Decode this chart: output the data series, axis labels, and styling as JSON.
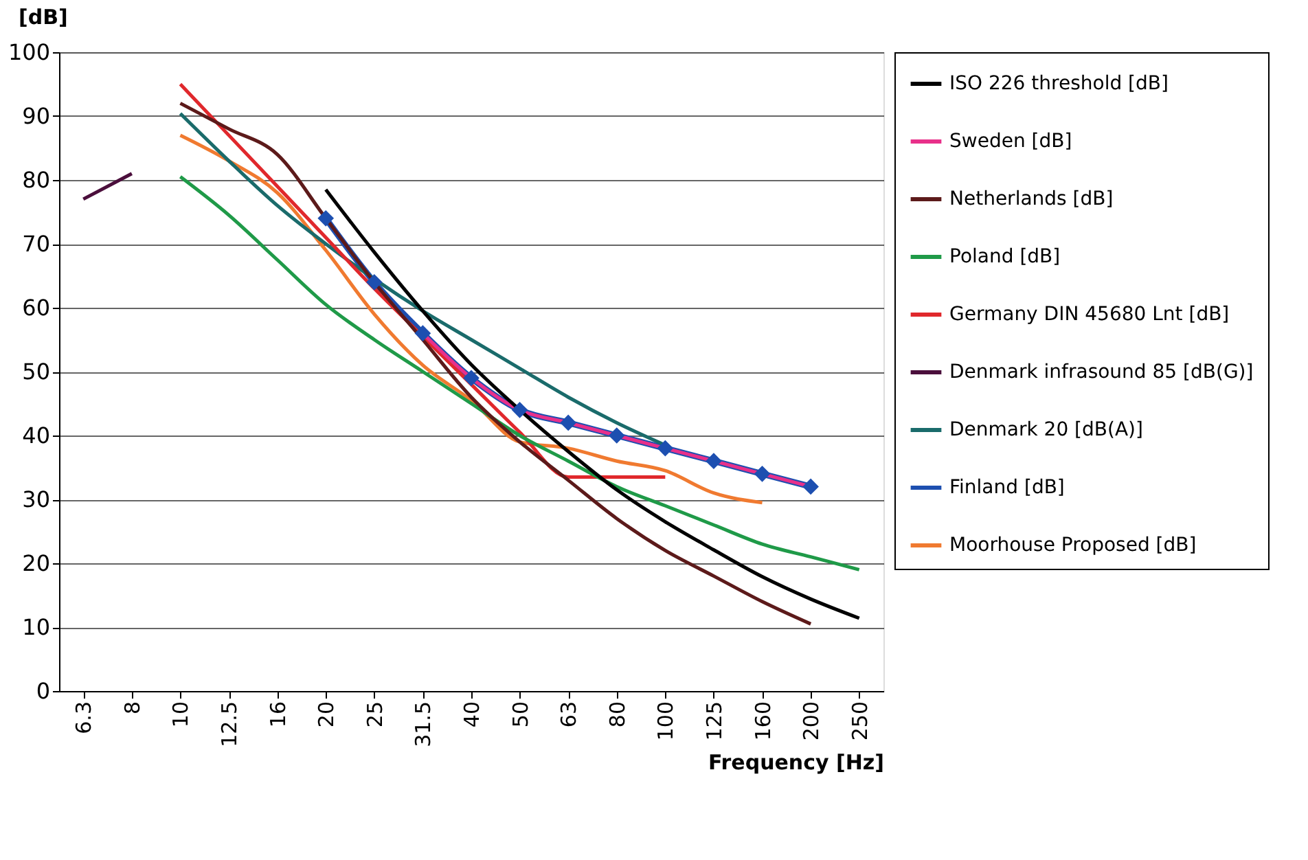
{
  "chart_data": {
    "type": "line",
    "categories": [
      "6.3",
      "8",
      "10",
      "12.5",
      "16",
      "20",
      "25",
      "31.5",
      "40",
      "50",
      "63",
      "80",
      "100",
      "125",
      "160",
      "200",
      "250"
    ],
    "xlabel": "Frequency [Hz]",
    "ylabel": "[dB]",
    "ylim": [
      0,
      100
    ],
    "yticks": [
      0,
      10,
      20,
      30,
      40,
      50,
      60,
      70,
      80,
      90,
      100
    ],
    "grid": "y",
    "legend": "right",
    "line_style": "solid",
    "series": [
      {
        "name": "ISO 226 threshold [dB]",
        "color": "#000000",
        "marker": "none",
        "values": [
          null,
          null,
          null,
          null,
          null,
          78.5,
          68.7,
          59.5,
          51.1,
          44,
          37.5,
          31.5,
          26.5,
          22.1,
          17.9,
          14.4,
          11.4
        ]
      },
      {
        "name": "Sweden [dB]",
        "color": "#e8308a",
        "marker": "none",
        "values": [
          null,
          null,
          null,
          null,
          null,
          null,
          null,
          56,
          49,
          44,
          42,
          40,
          38,
          36,
          34,
          32,
          null
        ]
      },
      {
        "name": "Netherlands [dB]",
        "color": "#5c1a1a",
        "marker": "none",
        "values": [
          null,
          null,
          92,
          88,
          84,
          74,
          64,
          55,
          46,
          39,
          33,
          27,
          22,
          18,
          14,
          10.5,
          null
        ]
      },
      {
        "name": "Poland [dB]",
        "color": "#1f9a48",
        "marker": "none",
        "values": [
          null,
          null,
          80.5,
          74.5,
          67.5,
          60.5,
          55,
          50,
          45,
          40,
          36,
          32,
          29,
          26,
          23,
          21,
          19
        ]
      },
      {
        "name": "Germany DIN 45680 Lnt [dB]",
        "color": "#e0282c",
        "marker": "none",
        "values": [
          null,
          null,
          95,
          87,
          79,
          71,
          63,
          55.5,
          48,
          40.5,
          33.5,
          33.5,
          33.5,
          null,
          null,
          null,
          null
        ]
      },
      {
        "name": "Denmark infrasound 85 [dB(G)]",
        "color": "#4b0f3c",
        "marker": "none",
        "values": [
          77,
          81,
          null,
          null,
          null,
          null,
          null,
          null,
          null,
          null,
          null,
          null,
          null,
          null,
          null,
          null,
          null
        ]
      },
      {
        "name": "Denmark 20 [dB(A)]",
        "color": "#1a6b6b",
        "marker": "none",
        "values": [
          null,
          null,
          90.4,
          83,
          76,
          70,
          64.5,
          59.5,
          55,
          50.5,
          46,
          42,
          38.5,
          null,
          null,
          null,
          null
        ]
      },
      {
        "name": "Finland  [dB]",
        "color": "#1d4fb0",
        "marker": "diamond",
        "values": [
          null,
          null,
          null,
          null,
          null,
          74,
          64,
          56,
          49,
          44,
          42,
          40,
          38,
          36,
          34,
          32,
          null
        ]
      },
      {
        "name": "Moorhouse Proposed  [dB]",
        "color": "#f07a30",
        "marker": "none",
        "values": [
          null,
          null,
          87,
          83,
          78,
          69,
          59,
          51,
          45.5,
          39,
          38,
          36,
          34.5,
          31,
          29.5,
          null,
          null
        ]
      }
    ]
  }
}
